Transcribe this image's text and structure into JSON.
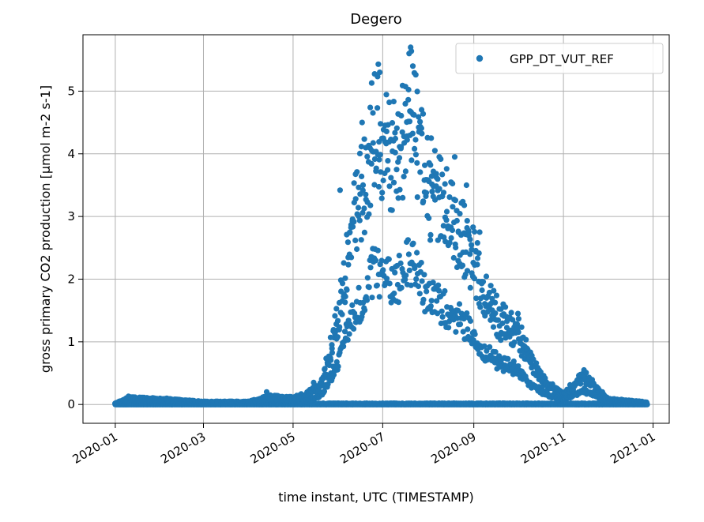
{
  "chart_data": {
    "type": "scatter",
    "title": "Degero",
    "xlabel": "time instant, UTC (TIMESTAMP)",
    "ylabel": "gross primary CO2 production [µmol m-2 s-1]",
    "xlim": [
      "2019-12-10",
      "2021-01-12"
    ],
    "ylim": [
      -0.3,
      5.9
    ],
    "x_ticks": [
      "2020-01",
      "2020-03",
      "2020-05",
      "2020-07",
      "2020-09",
      "2020-11",
      "2021-01"
    ],
    "y_ticks": [
      0,
      1,
      2,
      3,
      4,
      5
    ],
    "grid": true,
    "legend": "top-right",
    "color": "#1f77b4",
    "series": [
      {
        "name": "GPP_DT_VUT_REF",
        "envelope": {
          "dates": [
            "2020-01-01",
            "2020-01-10",
            "2020-02-01",
            "2020-03-01",
            "2020-04-01",
            "2020-04-15",
            "2020-05-01",
            "2020-05-10",
            "2020-05-20",
            "2020-05-25",
            "2020-06-01",
            "2020-06-10",
            "2020-06-20",
            "2020-06-25",
            "2020-07-01",
            "2020-07-10",
            "2020-07-20",
            "2020-08-01",
            "2020-08-10",
            "2020-08-20",
            "2020-09-01",
            "2020-09-10",
            "2020-09-20",
            "2020-10-01",
            "2020-10-10",
            "2020-10-20",
            "2020-11-01",
            "2020-11-15",
            "2020-12-01",
            "2020-12-28"
          ],
          "upper": [
            0.02,
            0.12,
            0.1,
            0.05,
            0.05,
            0.15,
            0.12,
            0.2,
            0.35,
            0.9,
            1.7,
            3.4,
            4.5,
            5.4,
            5.0,
            4.8,
            5.7,
            4.2,
            3.9,
            3.5,
            2.8,
            2.0,
            1.6,
            1.4,
            0.8,
            0.4,
            0.2,
            0.55,
            0.1,
            0.04
          ]
        },
        "sample_points": [
          {
            "x": "2020-06-28",
            "y": 5.43
          },
          {
            "x": "2020-07-20",
            "y": 5.7
          },
          {
            "x": "2020-07-19",
            "y": 5.6
          },
          {
            "x": "2020-06-29",
            "y": 5.3
          },
          {
            "x": "2020-06-17",
            "y": 4.5
          },
          {
            "x": "2020-08-03",
            "y": 4.25
          },
          {
            "x": "2020-08-19",
            "y": 3.95
          },
          {
            "x": "2020-08-27",
            "y": 3.5
          },
          {
            "x": "2020-09-05",
            "y": 2.75
          },
          {
            "x": "2020-06-02",
            "y": 3.42
          },
          {
            "x": "2020-09-21",
            "y": 1.6
          },
          {
            "x": "2020-10-01",
            "y": 1.45
          },
          {
            "x": "2020-10-07",
            "y": 0.9
          },
          {
            "x": "2020-11-15",
            "y": 0.55
          },
          {
            "x": "2020-11-08",
            "y": 0.3
          },
          {
            "x": "2020-04-13",
            "y": 0.2
          },
          {
            "x": "2020-01-10",
            "y": 0.13
          },
          {
            "x": "2020-02-05",
            "y": 0.1
          },
          {
            "x": "2020-05-15",
            "y": 0.35
          }
        ]
      }
    ]
  }
}
